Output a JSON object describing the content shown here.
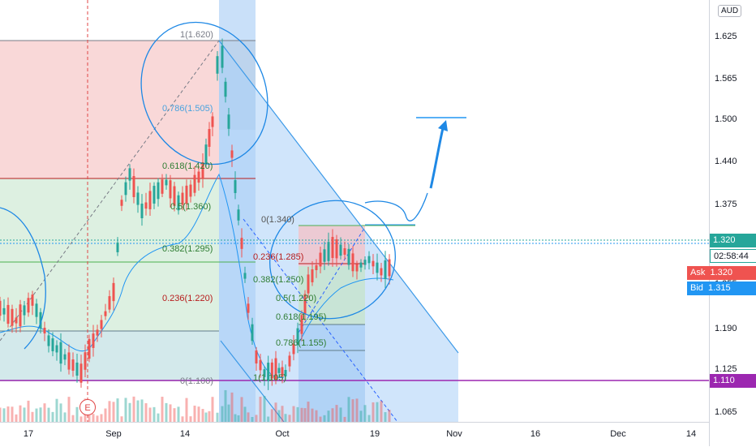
{
  "chart": {
    "currency": "AUD",
    "y_ticks": [
      "1.625",
      "1.565",
      "1.500",
      "1.440",
      "1.375",
      "1.320",
      "1.255",
      "1.190",
      "1.125",
      "1.065"
    ],
    "x_ticks": [
      "17",
      "Sep",
      "14",
      "Oct",
      "19",
      "Nov",
      "16",
      "Dec",
      "14"
    ],
    "price_badge": "1.320",
    "countdown": "02:58:44",
    "ask_label": "Ask",
    "ask_value": "1.320",
    "bid_label": "Bid",
    "bid_value": "1.315",
    "support_value": "1.110",
    "earnings_marker": "E",
    "fib_labels_1": [
      "1(1.620)",
      "0.786(1.505)",
      "0.618(1.420)",
      "0.5(1.360)",
      "0.382(1.295)",
      "0.236(1.220)",
      "0(1.100)"
    ],
    "fib_labels_2": [
      "0(1.340)",
      "0.236(1.285)",
      "0.382(1.250)",
      "0.5(1.220)",
      "0.618(1.195)",
      "0.786(1.155)",
      "1(1.105)"
    ],
    "colors": {
      "up": "#26a69a",
      "down": "#ef5350",
      "ask": "#ef5350",
      "bid": "#2196f3",
      "support": "#9c27b0",
      "price": "#26a69a"
    }
  }
}
